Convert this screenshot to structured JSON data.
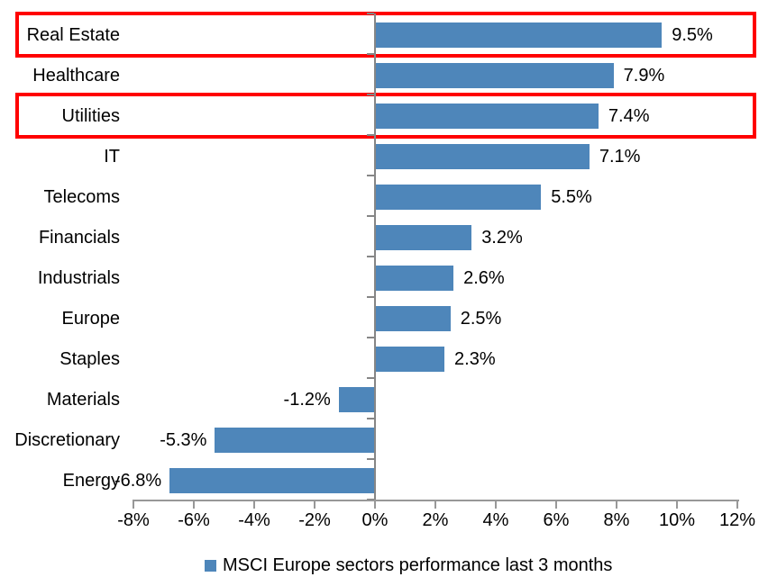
{
  "chart_data": {
    "type": "bar",
    "orientation": "horizontal",
    "categories": [
      "Real Estate",
      "Healthcare",
      "Utilities",
      "IT",
      "Telecoms",
      "Financials",
      "Industrials",
      "Europe",
      "Staples",
      "Materials",
      "Discretionary",
      "Energy"
    ],
    "values": [
      9.5,
      7.9,
      7.4,
      7.1,
      5.5,
      3.2,
      2.6,
      2.5,
      2.3,
      -1.2,
      -5.3,
      -6.8
    ],
    "data_labels": [
      "9.5%",
      "7.9%",
      "7.4%",
      "7.1%",
      "5.5%",
      "3.2%",
      "2.6%",
      "2.5%",
      "2.3%",
      "-1.2%",
      "-5.3%",
      "-6.8%"
    ],
    "x_ticks": [
      -8,
      -6,
      -4,
      -2,
      0,
      2,
      4,
      6,
      8,
      10,
      12
    ],
    "x_tick_labels": [
      "-8%",
      "-6%",
      "-4%",
      "-2%",
      "0%",
      "2%",
      "4%",
      "6%",
      "8%",
      "10%",
      "12%"
    ],
    "xlim": [
      -8,
      12
    ],
    "grid": false,
    "legend": "MSCI Europe sectors performance last 3 months",
    "legend_position": "bottom",
    "bar_color": "#4e86ba",
    "axis_color": "#8e8e8e",
    "highlight_color": "#ff0000",
    "highlighted_categories": [
      "Real Estate",
      "Utilities"
    ]
  }
}
